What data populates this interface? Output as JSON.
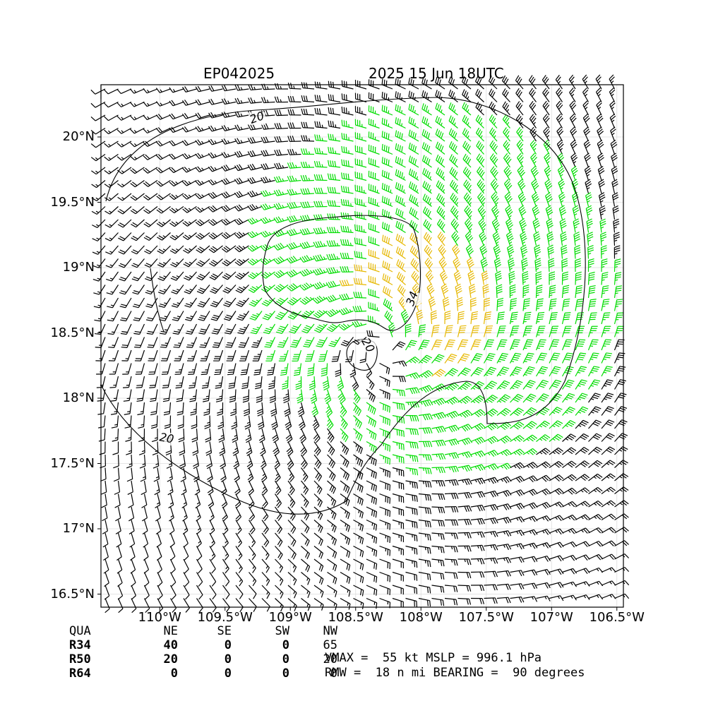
{
  "title_left": "EP042025",
  "title_right": "2025 15 Jun 18UTC",
  "axes": {
    "y_ticks": [
      "20°N",
      "19.5°N",
      "19°N",
      "18.5°N",
      "18°N",
      "17.5°N",
      "17°N",
      "16.5°N"
    ],
    "x_ticks": [
      "110°W",
      "109.5°W",
      "109°W",
      "108.5°W",
      "108°W",
      "107.5°W",
      "107°W",
      "106.5°W"
    ]
  },
  "map": {
    "lon_range": [
      -110.45,
      -106.45
    ],
    "lat_range": [
      16.4,
      20.4
    ],
    "center": {
      "lon": -108.3,
      "lat": 18.4
    },
    "contour_labels": [
      "20",
      "34",
      "20",
      "20"
    ],
    "colors": {
      "calm": "#000000",
      "ts34": "#00dd00",
      "ts50": "#e6b800",
      "hur64": "#ff5500"
    }
  },
  "radii_table": {
    "header": [
      "QUA",
      "NE",
      "SE",
      "SW",
      "NW"
    ],
    "rows": [
      [
        "R34",
        "40",
        "0",
        "0",
        "65"
      ],
      [
        "R50",
        "20",
        "0",
        "0",
        "20"
      ],
      [
        "R64",
        "0",
        "0",
        "0",
        "0"
      ]
    ]
  },
  "info_lines": [
    "VMAX =  55 kt MSLP = 996.1 hPa",
    "RMW =  18 n mi BEARING =  90 degrees"
  ]
}
